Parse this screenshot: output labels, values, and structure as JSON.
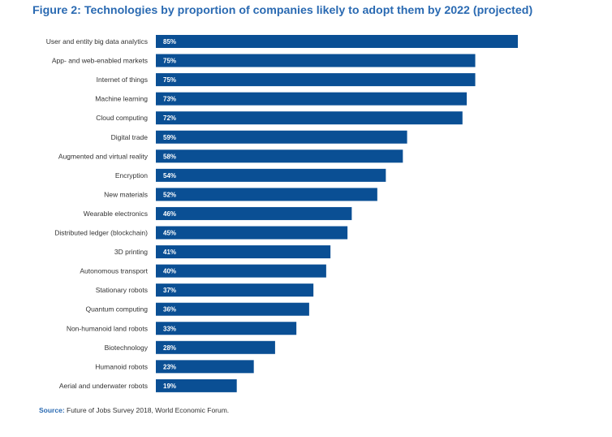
{
  "title": "Figure 2: Technologies by proportion of companies likely to adopt them by 2022 (projected)",
  "source": {
    "prefix": "Source:",
    "text": " Future of Jobs Survey 2018, World Economic Forum."
  },
  "colors": {
    "bar": "#0a4f94",
    "title": "#2a6ab2"
  },
  "chart_data": {
    "type": "bar",
    "orientation": "horizontal",
    "categories": [
      "User and entity big data analytics",
      "App- and web-enabled markets",
      "Internet of things",
      "Machine learning",
      "Cloud computing",
      "Digital trade",
      "Augmented and virtual reality",
      "Encryption",
      "New materials",
      "Wearable electronics",
      "Distributed ledger (blockchain)",
      "3D printing",
      "Autonomous transport",
      "Stationary robots",
      "Quantum computing",
      "Non-humanoid land robots",
      "Biotechnology",
      "Humanoid robots",
      "Aerial and underwater robots"
    ],
    "values": [
      85,
      75,
      75,
      73,
      72,
      59,
      58,
      54,
      52,
      46,
      45,
      41,
      40,
      37,
      36,
      33,
      28,
      23,
      19
    ],
    "value_labels": [
      "85%",
      "75%",
      "75%",
      "73%",
      "72%",
      "59%",
      "58%",
      "54%",
      "52%",
      "46%",
      "45%",
      "41%",
      "40%",
      "37%",
      "36%",
      "33%",
      "28%",
      "23%",
      "19%"
    ],
    "title": "Figure 2: Technologies by proportion of companies likely to adopt them by 2022 (projected)",
    "xlabel": "",
    "ylabel": "",
    "xlim": [
      0,
      85
    ],
    "grid": false,
    "legend": "none"
  }
}
